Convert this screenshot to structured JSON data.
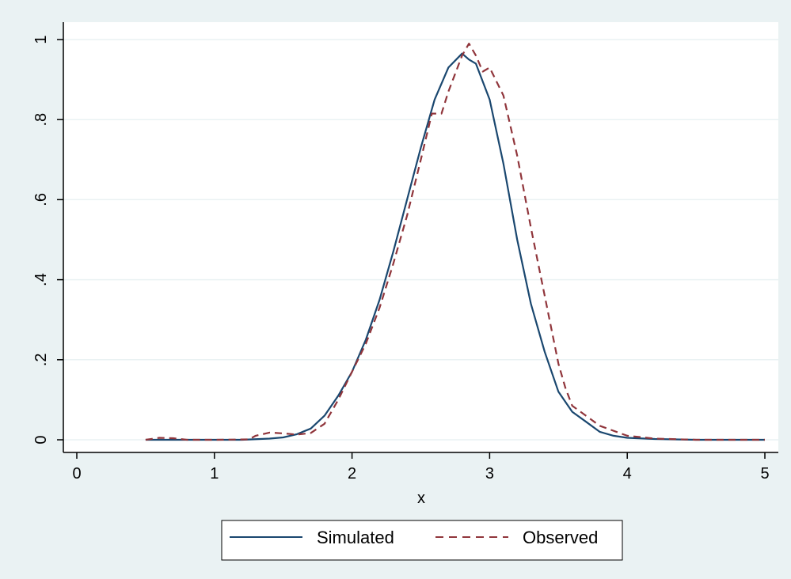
{
  "chart_data": {
    "type": "line",
    "title": "",
    "xlabel": "x",
    "ylabel": "",
    "xlim": [
      0,
      5
    ],
    "ylim": [
      0,
      1
    ],
    "xticks": [
      0,
      1,
      2,
      3,
      4,
      5
    ],
    "xtick_labels": [
      "0",
      "1",
      "2",
      "3",
      "4",
      "5"
    ],
    "yticks": [
      0,
      0.2,
      0.4,
      0.6,
      0.8,
      1
    ],
    "ytick_labels": [
      "0",
      ".2",
      ".4",
      ".6",
      ".8",
      "1"
    ],
    "grid": "horizontal",
    "legend_position": "bottom",
    "background_color": "#eaf2f3",
    "plot_background": "#ffffff",
    "series": [
      {
        "name": "Simulated",
        "color": "#1a476f",
        "dash": "solid",
        "x": [
          0.5,
          0.7,
          1.0,
          1.2,
          1.4,
          1.5,
          1.6,
          1.7,
          1.8,
          1.9,
          2.0,
          2.1,
          2.2,
          2.3,
          2.4,
          2.5,
          2.6,
          2.7,
          2.8,
          2.85,
          2.9,
          3.0,
          3.1,
          3.2,
          3.3,
          3.4,
          3.5,
          3.6,
          3.7,
          3.8,
          3.9,
          4.0,
          4.2,
          4.5,
          5.0
        ],
        "y": [
          0.0,
          0.0,
          0.0,
          0.0,
          0.003,
          0.006,
          0.014,
          0.028,
          0.06,
          0.11,
          0.17,
          0.25,
          0.35,
          0.47,
          0.6,
          0.73,
          0.85,
          0.93,
          0.965,
          0.95,
          0.94,
          0.85,
          0.69,
          0.5,
          0.34,
          0.22,
          0.12,
          0.07,
          0.045,
          0.02,
          0.01,
          0.005,
          0.002,
          0.0,
          0.0
        ]
      },
      {
        "name": "Observed",
        "color": "#90353b",
        "dash": "dashed",
        "x": [
          0.5,
          0.6,
          0.7,
          0.8,
          1.0,
          1.25,
          1.3,
          1.4,
          1.5,
          1.6,
          1.7,
          1.8,
          1.9,
          2.0,
          2.1,
          2.2,
          2.3,
          2.4,
          2.5,
          2.58,
          2.65,
          2.7,
          2.8,
          2.85,
          2.9,
          2.95,
          3.0,
          3.1,
          3.2,
          3.3,
          3.4,
          3.5,
          3.55,
          3.6,
          3.7,
          3.8,
          4.0,
          4.2,
          4.5,
          5.0
        ],
        "y": [
          0.0,
          0.005,
          0.004,
          0.0,
          0.0,
          0.001,
          0.01,
          0.018,
          0.016,
          0.013,
          0.017,
          0.04,
          0.1,
          0.17,
          0.24,
          0.33,
          0.44,
          0.56,
          0.7,
          0.815,
          0.815,
          0.87,
          0.96,
          0.99,
          0.96,
          0.92,
          0.93,
          0.86,
          0.71,
          0.53,
          0.36,
          0.19,
          0.13,
          0.085,
          0.06,
          0.035,
          0.01,
          0.003,
          0.0,
          0.0
        ]
      }
    ]
  }
}
